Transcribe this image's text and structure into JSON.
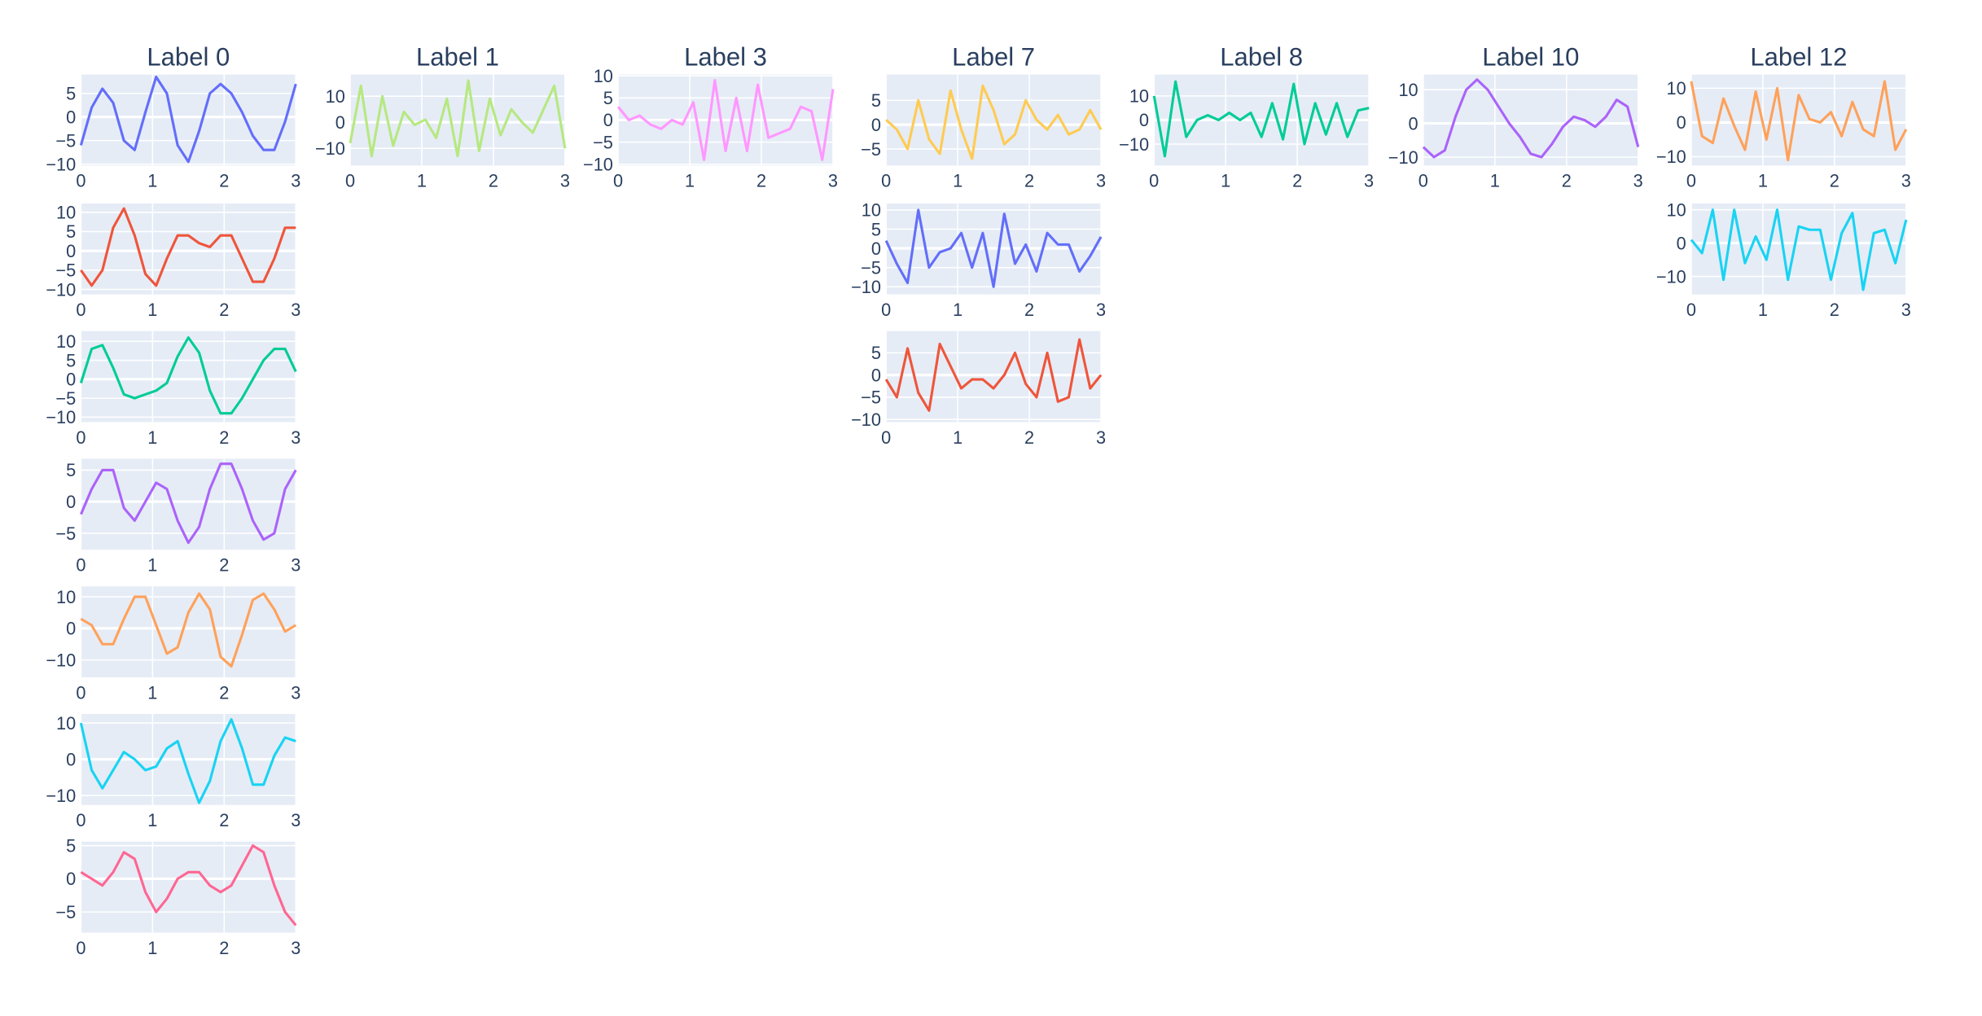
{
  "chart_data": [
    {
      "type": "line",
      "title": "Label 0",
      "x": [
        0,
        0.15,
        0.3,
        0.45,
        0.6,
        0.75,
        0.9,
        1.05,
        1.2,
        1.35,
        1.5,
        1.65,
        1.8,
        1.95,
        2.1,
        2.25,
        2.4,
        2.55,
        2.7,
        2.85,
        3
      ],
      "series": [
        {
          "color": "#636efa",
          "values": [
            -6,
            2,
            6,
            3,
            -5,
            -7,
            1,
            8.5,
            5,
            -6,
            -9.5,
            -3,
            5,
            7,
            5,
            1,
            -4,
            -7,
            -7,
            -1,
            7
          ]
        }
      ],
      "xlim": [
        0,
        3
      ],
      "xticks": [
        0,
        1,
        2,
        3
      ],
      "ylim": [
        -10.3,
        9
      ],
      "yticks": [
        5,
        0,
        {
          "value": -5,
          "label": "−5"
        },
        {
          "value": -10,
          "label": "−10"
        }
      ],
      "grid": true
    },
    {
      "type": "line",
      "x": [
        0,
        0.15,
        0.3,
        0.45,
        0.6,
        0.75,
        0.9,
        1.05,
        1.2,
        1.35,
        1.5,
        1.65,
        1.8,
        1.95,
        2.1,
        2.25,
        2.4,
        2.55,
        2.7,
        2.85,
        3
      ],
      "series": [
        {
          "color": "#EF553B",
          "values": [
            -5,
            -9,
            -5,
            6,
            11,
            4,
            -6,
            -9,
            -2,
            4,
            4,
            2,
            1,
            4,
            4,
            -2,
            -8,
            -8,
            -2,
            6,
            6
          ]
        }
      ],
      "xlim": [
        0,
        3
      ],
      "xticks": [
        0,
        1,
        2,
        3
      ],
      "ylim": [
        -11.3,
        12.3
      ],
      "yticks": [
        10,
        5,
        0,
        {
          "value": -5,
          "label": "−5"
        },
        {
          "value": -10,
          "label": "−10"
        }
      ],
      "grid": true
    },
    {
      "type": "line",
      "x": [
        0,
        0.15,
        0.3,
        0.45,
        0.6,
        0.75,
        0.9,
        1.05,
        1.2,
        1.35,
        1.5,
        1.65,
        1.8,
        1.95,
        2.1,
        2.25,
        2.4,
        2.55,
        2.7,
        2.85,
        3
      ],
      "series": [
        {
          "color": "#00cc96",
          "values": [
            -1,
            8,
            9,
            3,
            -4,
            -5,
            -4,
            -3,
            -1,
            6,
            11,
            7,
            -3,
            -9,
            -9,
            -5,
            0,
            5,
            8,
            8,
            2
          ]
        }
      ],
      "xlim": [
        0,
        3
      ],
      "xticks": [
        0,
        1,
        2,
        3
      ],
      "ylim": [
        -11.3,
        12.7
      ],
      "yticks": [
        10,
        5,
        0,
        {
          "value": -5,
          "label": "−5"
        },
        {
          "value": -10,
          "label": "−10"
        }
      ],
      "grid": true
    },
    {
      "type": "line",
      "x": [
        0,
        0.15,
        0.3,
        0.45,
        0.6,
        0.75,
        0.9,
        1.05,
        1.2,
        1.35,
        1.5,
        1.65,
        1.8,
        1.95,
        2.1,
        2.25,
        2.4,
        2.55,
        2.7,
        2.85,
        3
      ],
      "series": [
        {
          "color": "#ab63fa",
          "values": [
            -2,
            2,
            5,
            5,
            -1,
            -3,
            0,
            3,
            2,
            -3,
            -6.5,
            -4,
            2,
            6,
            6,
            2,
            -3,
            -6,
            -5,
            2,
            5
          ]
        }
      ],
      "xlim": [
        0,
        3
      ],
      "xticks": [
        0,
        1,
        2,
        3
      ],
      "ylim": [
        -7.6,
        6.8
      ],
      "yticks": [
        5,
        0,
        {
          "value": -5,
          "label": "−5"
        }
      ],
      "grid": true
    },
    {
      "type": "line",
      "x": [
        0,
        0.15,
        0.3,
        0.45,
        0.6,
        0.75,
        0.9,
        1.05,
        1.2,
        1.35,
        1.5,
        1.65,
        1.8,
        1.95,
        2.1,
        2.25,
        2.4,
        2.55,
        2.7,
        2.85,
        3
      ],
      "series": [
        {
          "color": "#FFA15A",
          "values": [
            3,
            1,
            -5,
            -5,
            3,
            10,
            10,
            1,
            -8,
            -6,
            5,
            11,
            6,
            -9,
            -12,
            -2,
            9,
            11,
            6,
            -1,
            1
          ]
        }
      ],
      "xlim": [
        0,
        3
      ],
      "xticks": [
        0,
        1,
        2,
        3
      ],
      "ylim": [
        -15.5,
        13.3
      ],
      "yticks": [
        10,
        0,
        {
          "value": -10,
          "label": "−10"
        }
      ],
      "grid": true
    },
    {
      "type": "line",
      "x": [
        0,
        0.15,
        0.3,
        0.45,
        0.6,
        0.75,
        0.9,
        1.05,
        1.2,
        1.35,
        1.5,
        1.65,
        1.8,
        1.95,
        2.1,
        2.25,
        2.4,
        2.55,
        2.7,
        2.85,
        3
      ],
      "series": [
        {
          "color": "#19d3f3",
          "values": [
            10,
            -3,
            -8,
            -3,
            2,
            0,
            -3,
            -2,
            3,
            5,
            -4,
            -12,
            -6,
            5,
            11,
            3,
            -7,
            -7,
            1,
            6,
            5
          ]
        }
      ],
      "xlim": [
        0,
        3
      ],
      "xticks": [
        0,
        1,
        2,
        3
      ],
      "ylim": [
        -12.6,
        12.5
      ],
      "yticks": [
        10,
        0,
        {
          "value": -10,
          "label": "−10"
        }
      ],
      "grid": true
    },
    {
      "type": "line",
      "x": [
        0,
        0.15,
        0.3,
        0.45,
        0.6,
        0.75,
        0.9,
        1.05,
        1.2,
        1.35,
        1.5,
        1.65,
        1.8,
        1.95,
        2.1,
        2.25,
        2.4,
        2.55,
        2.7,
        2.85,
        3
      ],
      "series": [
        {
          "color": "#FF6692",
          "values": [
            1,
            0,
            -1,
            1,
            4,
            3,
            -2,
            -5,
            -3,
            0,
            1,
            1,
            -1,
            -2,
            -1,
            2,
            5,
            4,
            -1,
            -5,
            -7
          ]
        }
      ],
      "xlim": [
        0,
        3
      ],
      "xticks": [
        0,
        1,
        2,
        3
      ],
      "ylim": [
        -8.1,
        5.6
      ],
      "yticks": [
        5,
        0,
        {
          "value": -5,
          "label": "−5"
        }
      ],
      "grid": true
    },
    {
      "type": "line",
      "title": "Label 1",
      "x": [
        0,
        0.15,
        0.3,
        0.45,
        0.6,
        0.75,
        0.9,
        1.05,
        1.2,
        1.35,
        1.5,
        1.65,
        1.8,
        1.95,
        2.1,
        2.25,
        2.4,
        2.55,
        2.7,
        2.85,
        3
      ],
      "series": [
        {
          "color": "#B6E880",
          "values": [
            -8,
            14,
            -13,
            10,
            -9,
            4,
            -1,
            1,
            -6,
            9,
            -13,
            16,
            -11,
            9,
            -5,
            5,
            0,
            -4,
            5,
            14,
            -10
          ]
        }
      ],
      "xlim": [
        0,
        3
      ],
      "xticks": [
        0,
        1,
        2,
        3
      ],
      "ylim": [
        -16.6,
        18.3
      ],
      "yticks": [
        10,
        0,
        {
          "value": -10,
          "label": "−10"
        }
      ],
      "grid": true
    },
    {
      "type": "line",
      "title": "Label 3",
      "x": [
        0,
        0.15,
        0.3,
        0.45,
        0.6,
        0.75,
        0.9,
        1.05,
        1.2,
        1.35,
        1.5,
        1.65,
        1.8,
        1.95,
        2.1,
        2.25,
        2.4,
        2.55,
        2.7,
        2.85,
        3
      ],
      "series": [
        {
          "color": "#FF97FF",
          "values": [
            3,
            0,
            1,
            -1,
            -2,
            0,
            -1,
            4,
            -9,
            9,
            -7,
            5,
            -7,
            8,
            -4,
            -3,
            -2,
            3,
            2,
            -9,
            7
          ]
        }
      ],
      "xlim": [
        0,
        3
      ],
      "xticks": [
        0,
        1,
        2,
        3
      ],
      "ylim": [
        -10.3,
        10.3
      ],
      "yticks": [
        10,
        5,
        0,
        {
          "value": -5,
          "label": "−5"
        },
        {
          "value": -10,
          "label": "−10"
        }
      ],
      "grid": true
    },
    {
      "type": "line",
      "title": "Label 7",
      "x": [
        0,
        0.15,
        0.3,
        0.45,
        0.6,
        0.75,
        0.9,
        1.05,
        1.2,
        1.35,
        1.5,
        1.65,
        1.8,
        1.95,
        2.1,
        2.25,
        2.4,
        2.55,
        2.7,
        2.85,
        3
      ],
      "series": [
        {
          "color": "#FECB52",
          "values": [
            1,
            -1,
            -5,
            5,
            -3,
            -6,
            7,
            -1,
            -7,
            8,
            3,
            -4,
            -2,
            5,
            1,
            -1,
            2,
            -2,
            -1,
            3,
            -1
          ]
        }
      ],
      "xlim": [
        0,
        3
      ],
      "xticks": [
        0,
        1,
        2,
        3
      ],
      "ylim": [
        -8.4,
        10.3
      ],
      "yticks": [
        5,
        0,
        {
          "value": -5,
          "label": "−5"
        }
      ],
      "grid": true
    },
    {
      "type": "line",
      "x": [
        0,
        0.15,
        0.3,
        0.45,
        0.6,
        0.75,
        0.9,
        1.05,
        1.2,
        1.35,
        1.5,
        1.65,
        1.8,
        1.95,
        2.1,
        2.25,
        2.4,
        2.55,
        2.7,
        2.85,
        3
      ],
      "series": [
        {
          "color": "#636efa",
          "values": [
            2,
            -4,
            -9,
            10,
            -5,
            -1,
            0,
            4,
            -5,
            4,
            -10,
            9,
            -4,
            1,
            -6,
            4,
            1,
            1,
            -6,
            -2,
            3
          ]
        }
      ],
      "xlim": [
        0,
        3
      ],
      "xticks": [
        0,
        1,
        2,
        3
      ],
      "ylim": [
        -12,
        11.7
      ],
      "yticks": [
        10,
        5,
        0,
        {
          "value": -5,
          "label": "−5"
        },
        {
          "value": -10,
          "label": "−10"
        }
      ],
      "grid": true
    },
    {
      "type": "line",
      "x": [
        0,
        0.15,
        0.3,
        0.45,
        0.6,
        0.75,
        0.9,
        1.05,
        1.2,
        1.35,
        1.5,
        1.65,
        1.8,
        1.95,
        2.1,
        2.25,
        2.4,
        2.55,
        2.7,
        2.85,
        3
      ],
      "series": [
        {
          "color": "#EF553B",
          "values": [
            -1,
            -5,
            6,
            -4,
            -8,
            7,
            2,
            -3,
            -1,
            -1,
            -3,
            0,
            5,
            -2,
            -5,
            5,
            -6,
            -5,
            8,
            -3,
            0
          ]
        }
      ],
      "xlim": [
        0,
        3
      ],
      "xticks": [
        0,
        1,
        2,
        3
      ],
      "ylim": [
        -10.6,
        9.9
      ],
      "yticks": [
        5,
        0,
        {
          "value": -5,
          "label": "−5"
        },
        {
          "value": -10,
          "label": "−10"
        }
      ],
      "grid": true
    },
    {
      "type": "line",
      "title": "Label 8",
      "x": [
        0,
        0.15,
        0.3,
        0.45,
        0.6,
        0.75,
        0.9,
        1.05,
        1.2,
        1.35,
        1.5,
        1.65,
        1.8,
        1.95,
        2.1,
        2.25,
        2.4,
        2.55,
        2.7,
        2.85,
        3
      ],
      "series": [
        {
          "color": "#00cc96",
          "values": [
            10,
            -15,
            16,
            -7,
            0,
            2,
            0,
            3,
            0,
            3,
            -7,
            7,
            -8,
            15,
            -10,
            7,
            -6,
            7,
            -7,
            4,
            5
          ]
        }
      ],
      "xlim": [
        0,
        3
      ],
      "xticks": [
        0,
        1,
        2,
        3
      ],
      "ylim": [
        -18.9,
        18.9
      ],
      "yticks": [
        10,
        0,
        {
          "value": -10,
          "label": "−10"
        }
      ],
      "grid": true
    },
    {
      "type": "line",
      "title": "Label 10",
      "x": [
        0,
        0.15,
        0.3,
        0.45,
        0.6,
        0.75,
        0.9,
        1.05,
        1.2,
        1.35,
        1.5,
        1.65,
        1.8,
        1.95,
        2.1,
        2.25,
        2.4,
        2.55,
        2.7,
        2.85,
        3
      ],
      "series": [
        {
          "color": "#ab63fa",
          "values": [
            -7,
            -10,
            -8,
            2,
            10,
            13,
            10,
            5,
            0,
            -4,
            -9,
            -10,
            -6,
            -1,
            2,
            1,
            -1,
            2,
            7,
            5,
            -7
          ]
        }
      ],
      "xlim": [
        0,
        3
      ],
      "xticks": [
        0,
        1,
        2,
        3
      ],
      "ylim": [
        -12.5,
        14.5
      ],
      "yticks": [
        10,
        0,
        {
          "value": -10,
          "label": "−10"
        }
      ],
      "grid": true
    },
    {
      "type": "line",
      "title": "Label 12",
      "x": [
        0,
        0.15,
        0.3,
        0.45,
        0.6,
        0.75,
        0.9,
        1.05,
        1.2,
        1.35,
        1.5,
        1.65,
        1.8,
        1.95,
        2.1,
        2.25,
        2.4,
        2.55,
        2.7,
        2.85,
        3
      ],
      "series": [
        {
          "color": "#FFA15A",
          "values": [
            12,
            -4,
            -6,
            7,
            -1,
            -8,
            9,
            -5,
            10,
            -11,
            8,
            1,
            0,
            3,
            -4,
            6,
            -2,
            -4,
            12,
            -8,
            -2
          ]
        }
      ],
      "xlim": [
        0,
        3
      ],
      "xticks": [
        0,
        1,
        2,
        3
      ],
      "ylim": [
        -12.6,
        14
      ],
      "yticks": [
        10,
        0,
        {
          "value": -10,
          "label": "−10"
        }
      ],
      "grid": true
    },
    {
      "type": "line",
      "x": [
        0,
        0.15,
        0.3,
        0.45,
        0.6,
        0.75,
        0.9,
        1.05,
        1.2,
        1.35,
        1.5,
        1.65,
        1.8,
        1.95,
        2.1,
        2.25,
        2.4,
        2.55,
        2.7,
        2.85,
        3
      ],
      "series": [
        {
          "color": "#19d3f3",
          "values": [
            1,
            -3,
            10,
            -11,
            10,
            -6,
            2,
            -5,
            10,
            -11,
            5,
            4,
            4,
            -11,
            3,
            9,
            -14,
            3,
            4,
            -6,
            7
          ]
        }
      ],
      "xlim": [
        0,
        3
      ],
      "xticks": [
        0,
        1,
        2,
        3
      ],
      "ylim": [
        -15.4,
        11.9
      ],
      "yticks": [
        10,
        0,
        {
          "value": -10,
          "label": "−10"
        }
      ],
      "grid": true
    }
  ]
}
